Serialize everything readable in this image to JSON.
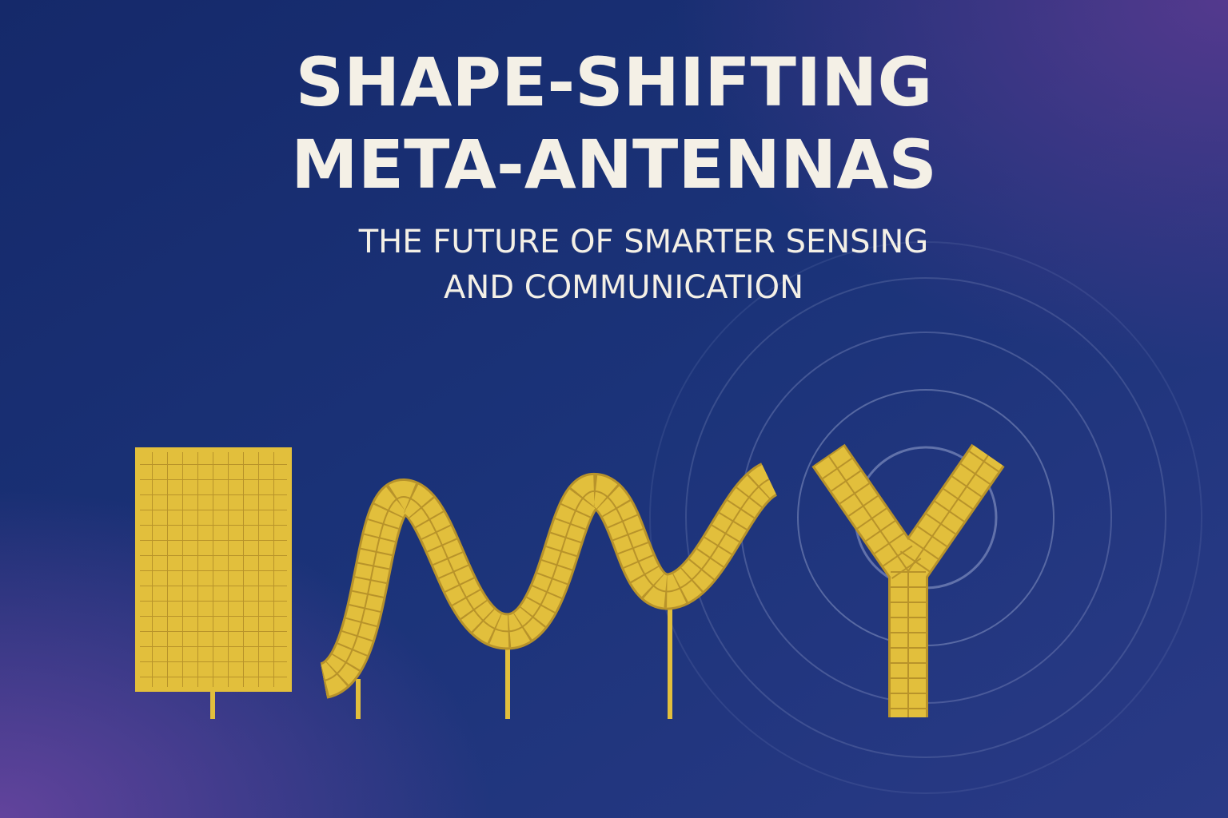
{
  "title": {
    "lines": [
      "SHAPE-SHIFTING",
      "META-ANTENNAS"
    ]
  },
  "subtitle": {
    "lines": [
      "THE FUTURE OF SMARTER SENSING",
      "AND COMMUNICATION"
    ]
  }
}
